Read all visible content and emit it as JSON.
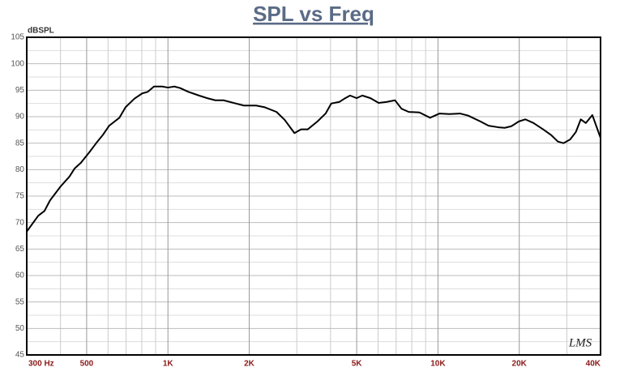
{
  "chart_data": {
    "type": "line",
    "title": "SPL vs Freq",
    "ylabel": "dBSPL",
    "watermark": "LMS",
    "xscale": "log",
    "grid": true,
    "color": "#000000",
    "xlim": [
      300,
      40000
    ],
    "xticks": [
      {
        "value": 300,
        "label": "300 Hz"
      },
      500,
      {
        "value": 1000,
        "label": "1K"
      },
      {
        "value": 2000,
        "label": "2K"
      },
      {
        "value": 5000,
        "label": "5K"
      },
      {
        "value": 10000,
        "label": "10K"
      },
      {
        "value": 20000,
        "label": "20K"
      },
      {
        "value": 40000,
        "label": "40K"
      }
    ],
    "x_minor_ticks": [
      400,
      600,
      700,
      800,
      900,
      3000,
      4000,
      6000,
      7000,
      8000,
      9000,
      30000
    ],
    "ylim": [
      45,
      105
    ],
    "yticks": [
      45,
      50,
      55,
      60,
      65,
      70,
      75,
      80,
      85,
      90,
      95,
      100,
      105
    ],
    "y_minor_ticks": [
      47.5,
      52.5,
      57.5,
      62.5,
      67.5,
      72.5,
      77.5,
      82.5,
      87.5,
      92.5,
      97.5,
      102.5
    ],
    "x": [
      300,
      331,
      349,
      366,
      400,
      432,
      451,
      476,
      512,
      548,
      575,
      606,
      661,
      697,
      751,
      803,
      842,
      888,
      952,
      1000,
      1056,
      1110,
      1190,
      1303,
      1397,
      1498,
      1606,
      1783,
      1911,
      2121,
      2275,
      2524,
      2706,
      2941,
      3112,
      3292,
      3578,
      3836,
      4027,
      4318,
      4502,
      4726,
      4998,
      5245,
      5623,
      6030,
      6465,
      6931,
      7328,
      7797,
      8537,
      9347,
      10140,
      11020,
      12070,
      12940,
      14360,
      15390,
      16730,
      17680,
      18700,
      19920,
      21050,
      22580,
      24530,
      26290,
      27800,
      29180,
      30860,
      32400,
      33800,
      35270,
      37300,
      40000
    ],
    "series": [
      {
        "values": [
          68.3,
          71.3,
          72.2,
          74.2,
          76.8,
          78.7,
          80.2,
          81.3,
          83.3,
          85.3,
          86.6,
          88.3,
          89.8,
          91.8,
          93.4,
          94.4,
          94.7,
          95.7,
          95.7,
          95.5,
          95.7,
          95.4,
          94.7,
          94.0,
          93.5,
          93.1,
          93.1,
          92.5,
          92.1,
          92.1,
          91.8,
          90.9,
          89.4,
          86.9,
          87.6,
          87.6,
          89.1,
          90.6,
          92.5,
          92.8,
          93.4,
          94.0,
          93.5,
          94.0,
          93.5,
          92.6,
          92.8,
          93.1,
          91.5,
          90.9,
          90.8,
          89.8,
          90.6,
          90.5,
          90.6,
          90.2,
          89.1,
          88.3,
          88.0,
          87.9,
          88.2,
          89.1,
          89.5,
          88.8,
          87.6,
          86.5,
          85.3,
          85.0,
          85.7,
          87.1,
          89.5,
          88.8,
          90.3,
          86.0
        ]
      }
    ]
  }
}
